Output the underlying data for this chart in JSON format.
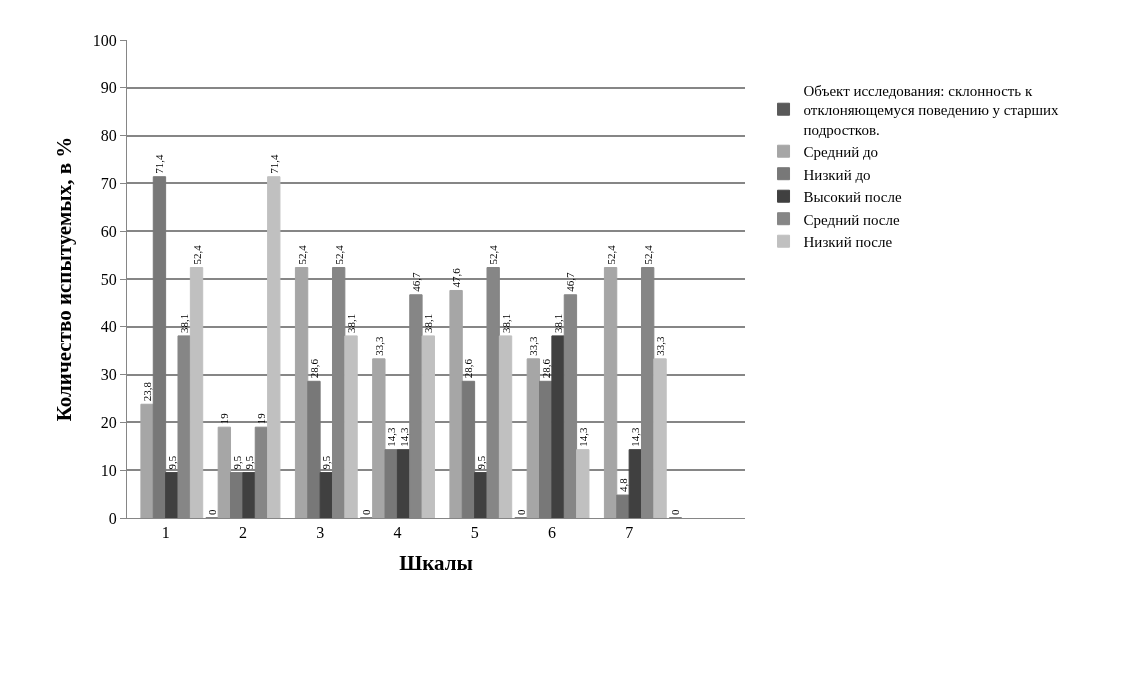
{
  "chart_data": {
    "type": "bar",
    "xlabel": "Шкалы",
    "ylabel": "Количество испытуемых, в %",
    "categories": [
      "1",
      "2",
      "3",
      "4",
      "5",
      "6",
      "7",
      null
    ],
    "ylim": [
      0,
      100
    ],
    "yticks": [
      0,
      10,
      20,
      30,
      40,
      50,
      60,
      70,
      80,
      90,
      100
    ],
    "grid": "y",
    "legend": "right",
    "series": [
      {
        "name": "Объект исследования: склонность к отклоняющемуся поведению у старших подростков.",
        "color": "#595959",
        "values": [
          null,
          0,
          null,
          0,
          null,
          0,
          null,
          0
        ],
        "value_labels": [
          null,
          "0",
          null,
          "0",
          null,
          "0",
          null,
          "0"
        ]
      },
      {
        "name": "Средний до",
        "color": "#a6a6a6",
        "values": [
          23.8,
          19,
          52.4,
          33.3,
          47.6,
          33.3,
          52.4,
          null
        ],
        "value_labels": [
          "23,8",
          "19",
          "52,4",
          "33,3",
          "47,6",
          "33,3",
          "52,4",
          null
        ]
      },
      {
        "name": "Низкий до",
        "color": "#787878",
        "values": [
          71.4,
          9.5,
          28.6,
          14.3,
          28.6,
          28.6,
          4.8,
          null
        ],
        "value_labels": [
          "71,4",
          "9,5",
          "28,6",
          "14,3",
          "28,6",
          "28,6",
          "4,8",
          null
        ]
      },
      {
        "name": "Высокий после",
        "color": "#404040",
        "values": [
          9.5,
          9.5,
          9.5,
          14.3,
          9.5,
          38.1,
          14.3,
          null
        ],
        "value_labels": [
          "9,5",
          "9,5",
          "9,5",
          "14,3",
          "9,5",
          "38,1",
          "14,3",
          null
        ]
      },
      {
        "name": "Средний после",
        "color": "#868686",
        "values": [
          38.1,
          19,
          52.4,
          46.7,
          52.4,
          46.7,
          52.4,
          null
        ],
        "value_labels": [
          "38,1",
          "19",
          "52,4",
          "46,7",
          "52,4",
          "46,7",
          "52,4",
          null
        ]
      },
      {
        "name": "Низкий после",
        "color": "#c0c0c0",
        "values": [
          52.4,
          71.4,
          38.1,
          38.1,
          38.1,
          14.3,
          33.3,
          null
        ],
        "value_labels": [
          "52,4",
          "71,4",
          "38,1",
          "38,1",
          "38,1",
          "14,3",
          "33,3",
          null
        ]
      }
    ]
  }
}
